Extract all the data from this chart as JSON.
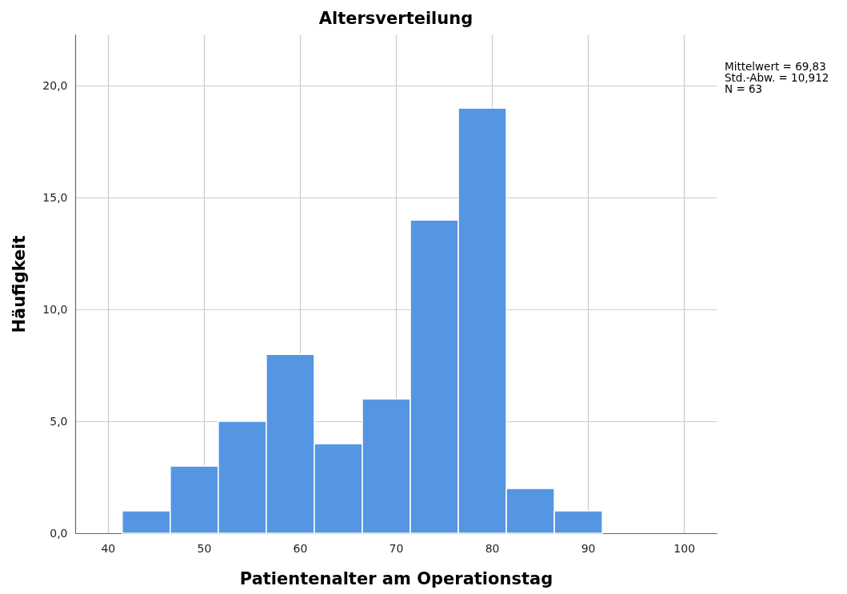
{
  "chart_data": {
    "type": "histogram",
    "title": "Altersverteilung",
    "xlabel": "Patientenalter am Operationstag",
    "ylabel": "Häufigkeit",
    "bins": [
      41.5,
      46.5,
      51.5,
      56.5,
      61.5,
      66.5,
      71.5,
      76.5,
      81.5,
      86.5,
      91.5
    ],
    "values": [
      1,
      3,
      5,
      8,
      4,
      6,
      14,
      19,
      2,
      1
    ],
    "color": "#5596e3",
    "xlim": [
      36.6,
      103.4
    ],
    "xticks": [
      40,
      50,
      60,
      70,
      80,
      90,
      100
    ],
    "ylim": [
      0,
      22.3
    ],
    "yticks": [
      {
        "value": 0,
        "label": "0,0"
      },
      {
        "value": 5,
        "label": "5,0"
      },
      {
        "value": 10,
        "label": "10,0"
      },
      {
        "value": 15,
        "label": "15,0"
      },
      {
        "value": 20,
        "label": "20,0"
      }
    ],
    "grid": true,
    "annotations": [
      "Mittelwert = 69,83",
      "Std.-Abw. = 10,912",
      "N = 63"
    ]
  }
}
